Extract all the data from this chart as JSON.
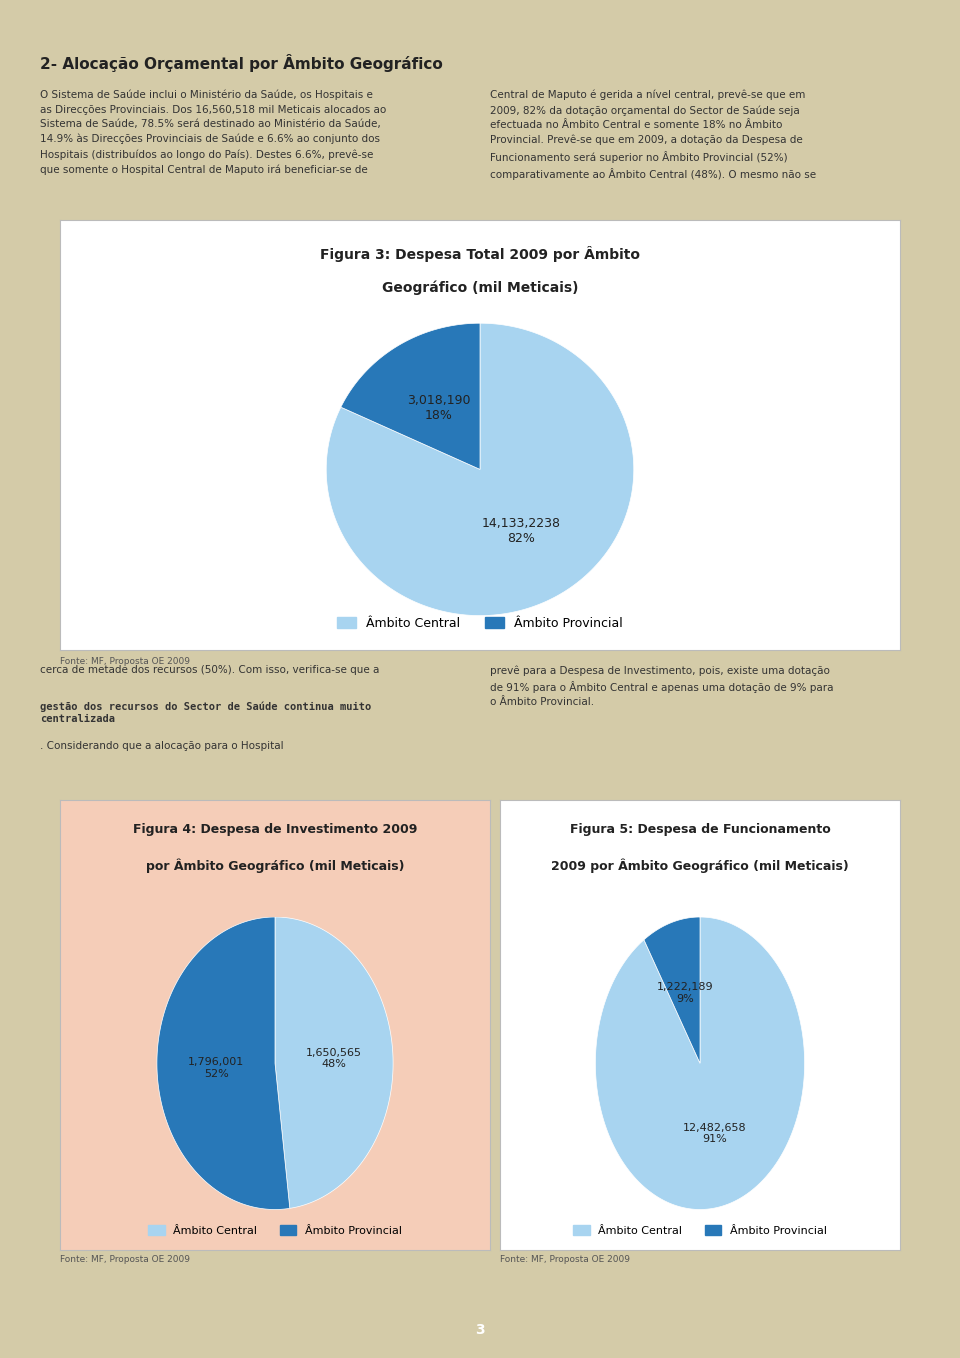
{
  "page_bg": "#d4cba8",
  "page_width": 9.6,
  "page_height": 13.58,
  "section_title": "2- Alocação Orçamental por Âmbito Geográfico",
  "left_text_1": "O Sistema de Saúde inclui o Ministério da Saúde, os Hospitais e\nas Direcções Provinciais. Dos 16,560,518 mil Meticais alocados ao\nSistema de Saúde, 78.5% será destinado ao Ministério da Saúde,\n14.9% às Direcções Provinciais de Saúde e 6.6% ao conjunto dos\nHospitais (distribuídos ao longo do País). Destes 6.6%, prevê-se\nque somente o Hospital Central de Maputo irá beneficiar-se de",
  "right_text_1": "Central de Maputo é gerida a nível central, prevê-se que em\n2009, 82% da dotação orçamental do Sector de Saúde seja\nefectuada no Âmbito Central e somente 18% no Âmbito\nProvincial. Prevê-se que em 2009, a dotação da Despesa de\nFuncionamento será superior no Âmbito Provincial (52%)\ncomparativamente ao Âmbito Central (48%). O mesmo não se",
  "fig3_title_line1": "Figura 3: Despesa Total 2009 por Âmbito",
  "fig3_title_line2": "Geográfico (mil Meticais)",
  "fig3_values": [
    14133.2238,
    3018.19
  ],
  "fig3_colors": [
    "#a8d4f0",
    "#2878b8"
  ],
  "fig3_legend": [
    "Âmbito Central",
    "Âmbito Provincial"
  ],
  "fig3_source": "Fonte: MF, Proposta OE 2009",
  "mid_left_text_normal": "cerca de metade dos recursos (50%). Com isso, verifica-se que a",
  "mid_left_text_bold": "gestão dos recursos do Sector de Saúde continua muito\ncentralizada",
  "mid_left_text_end": ". Considerando que a alocação para o Hospital",
  "mid_right_text": "prevê para a Despesa de Investimento, pois, existe uma dotação\nde 91% para o Âmbito Central e apenas uma dotação de 9% para\no Âmbito Provincial.",
  "fig4_title_line1": "Figura 4: Despesa de Investimento 2009",
  "fig4_title_line2": "por Âmbito Geográfico (mil Meticais)",
  "fig4_values": [
    1650.565,
    1796.001
  ],
  "fig4_colors": [
    "#a8d4f0",
    "#2878b8"
  ],
  "fig4_bg": "#f5cdb8",
  "fig4_legend": [
    "Âmbito Central",
    "Âmbito Provincial"
  ],
  "fig4_source": "Fonte: MF, Proposta OE 2009",
  "fig5_title_line1": "Figura 5: Despesa de Funcionamento",
  "fig5_title_line2": "2009 por Âmbito Geográfico (mil Meticais)",
  "fig5_values": [
    12482.658,
    1222.189
  ],
  "fig5_colors": [
    "#a8d4f0",
    "#2878b8"
  ],
  "fig5_bg": "#ffffff",
  "fig5_legend": [
    "Âmbito Central",
    "Âmbito Provincial"
  ],
  "fig5_source": "Fonte: MF, Proposta OE 2009",
  "page_num": "3",
  "fig3_label1": "14,133,2238\n82%",
  "fig3_label2": "3,018,190\n18%",
  "fig4_label1": "1,650,565\n48%",
  "fig4_label2": "1,796,001\n52%",
  "fig5_label1": "12,482,658\n91%",
  "fig5_label2": "1,222,189\n9%"
}
